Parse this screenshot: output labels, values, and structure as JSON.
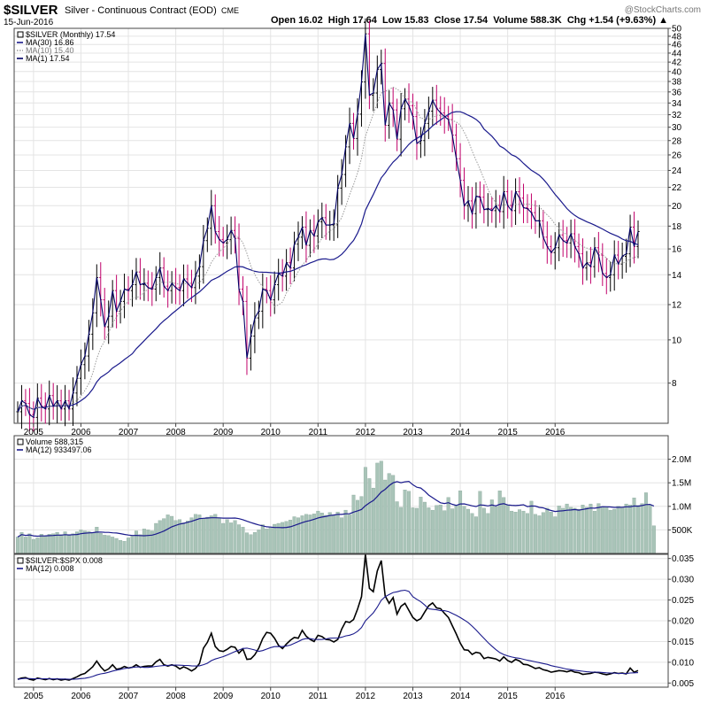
{
  "header": {
    "symbol": "$SILVER",
    "description": "Silver - Continuous Contract (EOD)",
    "exchange": "CME",
    "date": "15-Jun-2016",
    "ohlc_text": "Open 16.02  High 17.64  Low 15.83  Close 17.54  Volume 588.3K  Chg +1.54 (+9.63%) ▲",
    "watermark": "@StockCharts.com"
  },
  "colors": {
    "up_bar": "#000000",
    "down_bar": "#c0006a",
    "ma_long": "#1a1a8c",
    "ma_short": "#9a9a9a",
    "close_line": "#000066",
    "volume_bar": "#a9c4b8",
    "ratio_line": "#000000",
    "ratio_ma": "#1a1a8c",
    "grid": "#e4e4e4"
  },
  "chart_data": [
    {
      "type": "line",
      "panel": "price",
      "scale": "log",
      "legend": [
        {
          "label": "$SILVER (Monthly) 17.54",
          "style": "square"
        },
        {
          "label": "MA(30) 16.86",
          "style": "solid"
        },
        {
          "label": "MA(10) 15.40",
          "style": "dotted"
        },
        {
          "label": "MA(1) 17.54",
          "style": "solid"
        }
      ],
      "x_ticks": [
        "2005",
        "2006",
        "2007",
        "2008",
        "2009",
        "2010",
        "2011",
        "2012",
        "2013",
        "2014",
        "2015",
        "2016"
      ],
      "y_ticks": [
        8,
        10,
        12,
        14,
        16,
        18,
        20,
        22,
        24,
        26,
        28,
        30,
        32,
        34,
        36,
        38,
        40,
        42,
        44,
        46,
        48,
        50
      ],
      "ylim": [
        6.5,
        50
      ],
      "start": "2004-09",
      "closes": [
        6.9,
        7.3,
        7.2,
        6.8,
        6.7,
        7.4,
        7.1,
        7.0,
        7.5,
        7.1,
        7.3,
        7.0,
        7.3,
        7.0,
        7.6,
        8.2,
        8.8,
        9.2,
        10.3,
        11.5,
        13.8,
        12.3,
        10.7,
        11.3,
        12.9,
        11.6,
        12.2,
        13.0,
        12.9,
        13.3,
        14.2,
        13.3,
        13.4,
        13.1,
        13.0,
        13.8,
        14.5,
        13.2,
        12.9,
        13.4,
        13.1,
        12.9,
        13.7,
        13.4,
        13.1,
        13.9,
        14.6,
        16.7,
        17.8,
        20.0,
        17.5,
        16.8,
        16.5,
        16.8,
        17.6,
        16.9,
        13.0,
        12.2,
        9.1,
        10.2,
        11.2,
        11.6,
        13.0,
        12.9,
        12.3,
        13.3,
        14.1,
        13.9,
        14.9,
        14.5,
        16.4,
        17.0,
        17.9,
        16.3,
        17.6,
        17.1,
        18.4,
        18.8,
        18.1,
        18.1,
        18.2,
        21.9,
        23.5,
        27.1,
        30.6,
        28.3,
        32.1,
        37.9,
        48.6,
        35.4,
        35.8,
        40.4,
        41.7,
        30.3,
        34.0,
        32.8,
        28.2,
        33.0,
        34.7,
        33.5,
        31.7,
        27.6,
        28.0,
        30.6,
        32.6,
        34.5,
        33.1,
        32.3,
        31.7,
        31.2,
        28.8,
        25.5,
        22.8,
        20.0,
        20.5,
        19.2,
        21.0,
        20.9,
        19.6,
        19.7,
        19.5,
        20.0,
        19.4,
        21.5,
        20.0,
        19.5,
        21.5,
        20.8,
        19.8,
        19.7,
        19.3,
        18.5,
        18.5,
        17.0,
        16.2,
        15.7,
        16.1,
        17.2,
        16.7,
        16.5,
        17.3,
        16.2,
        15.6,
        14.5,
        14.9,
        14.6,
        16.1,
        15.5,
        14.1,
        13.8,
        14.0,
        15.5,
        14.8,
        15.4,
        15.6,
        17.9,
        16.2,
        17.5
      ]
    },
    {
      "type": "bar",
      "panel": "volume",
      "legend": [
        {
          "label": "Volume 588,315",
          "style": "square"
        },
        {
          "label": "MA(12) 933497.06",
          "style": "solid"
        }
      ],
      "y_ticks": [
        "500K",
        "1.0M",
        "1.5M",
        "2.0M"
      ],
      "y_tick_values": [
        500000,
        1000000,
        1500000,
        2000000
      ],
      "ylim": [
        0,
        2500000
      ],
      "values": [
        350000,
        450000,
        350000,
        420000,
        300000,
        330000,
        410000,
        380000,
        410000,
        420000,
        450000,
        400000,
        460000,
        380000,
        420000,
        460000,
        500000,
        480000,
        470000,
        440000,
        560000,
        430000,
        390000,
        380000,
        350000,
        320000,
        280000,
        260000,
        330000,
        380000,
        480000,
        400000,
        520000,
        500000,
        480000,
        640000,
        700000,
        740000,
        820000,
        790000,
        700000,
        720000,
        650000,
        690000,
        760000,
        830000,
        820000,
        740000,
        770000,
        800000,
        830000,
        760000,
        640000,
        720000,
        650000,
        700000,
        610000,
        560000,
        440000,
        400000,
        450000,
        500000,
        610000,
        520000,
        560000,
        620000,
        640000,
        660000,
        680000,
        710000,
        780000,
        760000,
        800000,
        830000,
        820000,
        840000,
        900000,
        860000,
        810000,
        870000,
        820000,
        880000,
        760000,
        920000,
        820000,
        1240000,
        1130000,
        1210000,
        1830000,
        1590000,
        1390000,
        1920000,
        1960000,
        1560000,
        1700000,
        1660000,
        1100000,
        980000,
        1350000,
        1320000,
        970000,
        960000,
        1200000,
        1090000,
        970000,
        920000,
        1020000,
        1030000,
        910000,
        1190000,
        950000,
        1030000,
        1330000,
        1000000,
        940000,
        850000,
        780000,
        1320000,
        960000,
        850000,
        1140000,
        990000,
        1330000,
        1190000,
        1020000,
        900000,
        880000,
        930000,
        900000,
        850000,
        1110000,
        830000,
        800000,
        870000,
        960000,
        880000,
        780000,
        1010000,
        960000,
        1050000,
        980000,
        960000,
        940000,
        1030000,
        980000,
        1050000,
        900000,
        1060000,
        990000,
        990000,
        920000,
        940000,
        1000000,
        970000,
        1050000,
        1030000,
        1180000,
        1020000,
        1060000,
        1290000,
        1040000,
        588315
      ]
    },
    {
      "type": "line",
      "panel": "ratio",
      "legend": [
        {
          "label": "$SILVER:$SPX 0.008",
          "style": "square"
        },
        {
          "label": "MA(12) 0.008",
          "style": "solid"
        }
      ],
      "x_ticks": [
        "2005",
        "2006",
        "2007",
        "2008",
        "2009",
        "2010",
        "2011",
        "2012",
        "2013",
        "2014",
        "2015",
        "2016"
      ],
      "y_ticks": [
        0.005,
        0.01,
        0.015,
        0.02,
        0.025,
        0.03,
        0.035
      ],
      "ylim": [
        0.004,
        0.036
      ],
      "values": [
        0.0059,
        0.0062,
        0.0063,
        0.0059,
        0.0057,
        0.0062,
        0.006,
        0.0058,
        0.0061,
        0.0058,
        0.006,
        0.0057,
        0.0059,
        0.0057,
        0.0061,
        0.0065,
        0.007,
        0.0073,
        0.0081,
        0.0089,
        0.0103,
        0.0089,
        0.0079,
        0.0084,
        0.0094,
        0.0083,
        0.0085,
        0.009,
        0.0086,
        0.0088,
        0.0094,
        0.0088,
        0.009,
        0.0091,
        0.0091,
        0.0101,
        0.0107,
        0.0094,
        0.0091,
        0.0094,
        0.0091,
        0.0084,
        0.0089,
        0.0085,
        0.0079,
        0.0085,
        0.0097,
        0.0134,
        0.0148,
        0.017,
        0.0138,
        0.0128,
        0.0126,
        0.0131,
        0.0138,
        0.0136,
        0.0122,
        0.0132,
        0.0107,
        0.0108,
        0.0118,
        0.0134,
        0.0157,
        0.0172,
        0.017,
        0.0158,
        0.0141,
        0.0133,
        0.0144,
        0.0153,
        0.016,
        0.0158,
        0.0177,
        0.0163,
        0.0155,
        0.015,
        0.0165,
        0.0162,
        0.0155,
        0.0154,
        0.0149,
        0.0155,
        0.018,
        0.0198,
        0.0196,
        0.0203,
        0.0228,
        0.0258,
        0.036,
        0.0278,
        0.027,
        0.032,
        0.0345,
        0.026,
        0.0242,
        0.0256,
        0.0216,
        0.0235,
        0.0242,
        0.0225,
        0.0208,
        0.02,
        0.0205,
        0.0221,
        0.0236,
        0.0243,
        0.0231,
        0.0229,
        0.0218,
        0.0208,
        0.0188,
        0.0168,
        0.0146,
        0.013,
        0.0129,
        0.0119,
        0.0124,
        0.0122,
        0.0109,
        0.0112,
        0.011,
        0.0108,
        0.0103,
        0.0113,
        0.0104,
        0.01,
        0.0107,
        0.0103,
        0.0095,
        0.0094,
        0.009,
        0.0085,
        0.0087,
        0.0082,
        0.008,
        0.0076,
        0.0078,
        0.008,
        0.0079,
        0.0077,
        0.008,
        0.0076,
        0.0075,
        0.0071,
        0.0072,
        0.0073,
        0.0076,
        0.0075,
        0.0072,
        0.007,
        0.0072,
        0.0075,
        0.0073,
        0.0074,
        0.0072,
        0.0086,
        0.0076,
        0.008
      ]
    }
  ]
}
